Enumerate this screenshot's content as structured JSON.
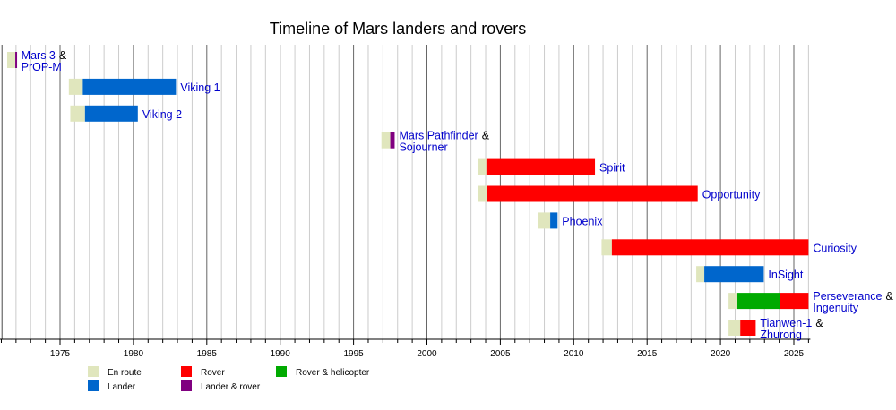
{
  "chart_data": {
    "type": "timeline",
    "title": "Timeline of Mars landers and rovers",
    "xlim": [
      1971,
      2026
    ],
    "ticks": [
      1975,
      1980,
      1985,
      1990,
      1995,
      2000,
      2005,
      2010,
      2015,
      2020,
      2025
    ],
    "grid": true,
    "legend_placement": "bottom-left",
    "phases": {
      "enroute": {
        "label": "En route",
        "color": "#e0e6bd"
      },
      "lander": {
        "label": "Lander",
        "color": "#0066cc"
      },
      "rover": {
        "label": "Rover",
        "color": "#ff0000"
      },
      "landerrover": {
        "label": "Lander & rover",
        "color": "#800080"
      },
      "roverheli": {
        "label": "Rover & helicopter",
        "color": "#00aa00"
      }
    },
    "legend_order": [
      "enroute",
      "lander",
      "rover",
      "landerrover",
      "roverheli"
    ],
    "missions": [
      {
        "name": [
          "Mars 3",
          "PrOP-M"
        ],
        "segments": [
          [
            "enroute",
            1971.4,
            1971.95
          ],
          [
            "landerrover",
            1971.95,
            1972.05
          ]
        ]
      },
      {
        "name": [
          "Viking 1"
        ],
        "segments": [
          [
            "enroute",
            1975.6,
            1976.55
          ],
          [
            "lander",
            1976.55,
            1982.9
          ]
        ]
      },
      {
        "name": [
          "Viking 2"
        ],
        "segments": [
          [
            "enroute",
            1975.7,
            1976.7
          ],
          [
            "lander",
            1976.7,
            1980.3
          ]
        ]
      },
      {
        "name": [
          "Mars Pathfinder",
          "Sojourner"
        ],
        "segments": [
          [
            "enroute",
            1996.9,
            1997.5
          ],
          [
            "landerrover",
            1997.5,
            1997.8
          ]
        ]
      },
      {
        "name": [
          "Spirit"
        ],
        "segments": [
          [
            "enroute",
            2003.45,
            2004.05
          ],
          [
            "rover",
            2004.05,
            2011.45
          ]
        ]
      },
      {
        "name": [
          "Opportunity"
        ],
        "segments": [
          [
            "enroute",
            2003.5,
            2004.1
          ],
          [
            "rover",
            2004.1,
            2018.45
          ]
        ]
      },
      {
        "name": [
          "Phoenix"
        ],
        "segments": [
          [
            "enroute",
            2007.6,
            2008.4
          ],
          [
            "lander",
            2008.4,
            2008.9
          ]
        ]
      },
      {
        "name": [
          "Curiosity"
        ],
        "segments": [
          [
            "enroute",
            2011.9,
            2012.6
          ],
          [
            "rover",
            2012.6,
            2026
          ]
        ]
      },
      {
        "name": [
          "InSight"
        ],
        "segments": [
          [
            "enroute",
            2018.35,
            2018.9
          ],
          [
            "lander",
            2018.9,
            2022.95
          ]
        ]
      },
      {
        "name": [
          "Perseverance",
          "Ingenuity"
        ],
        "segments": [
          [
            "enroute",
            2020.55,
            2021.15
          ],
          [
            "roverheli",
            2021.15,
            2024.05
          ],
          [
            "rover",
            2024.05,
            2026
          ]
        ]
      },
      {
        "name": [
          "Tianwen-1",
          "Zhurong"
        ],
        "segments": [
          [
            "enroute",
            2020.55,
            2021.35
          ],
          [
            "rover",
            2021.35,
            2022.4
          ]
        ]
      }
    ]
  }
}
